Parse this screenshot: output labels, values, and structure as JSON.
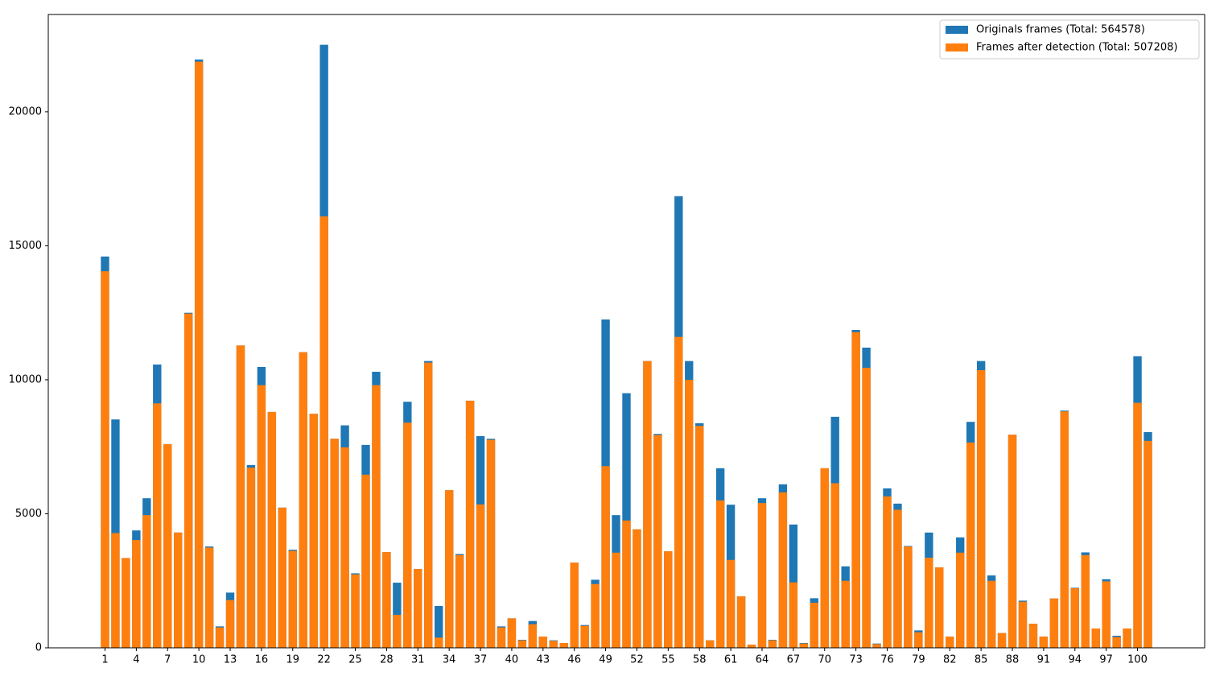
{
  "chart_data": {
    "type": "bar",
    "overlay": true,
    "x": [
      1,
      2,
      3,
      4,
      5,
      6,
      7,
      8,
      9,
      10,
      11,
      12,
      13,
      14,
      15,
      16,
      17,
      18,
      19,
      20,
      21,
      22,
      23,
      24,
      25,
      26,
      27,
      28,
      29,
      30,
      31,
      32,
      33,
      34,
      35,
      36,
      37,
      38,
      39,
      40,
      41,
      42,
      43,
      44,
      45,
      46,
      47,
      48,
      49,
      50,
      51,
      52,
      53,
      54,
      55,
      56,
      57,
      58,
      59,
      60,
      61,
      62,
      63,
      64,
      65,
      66,
      67,
      68,
      69,
      70,
      71,
      72,
      73,
      74,
      75,
      76,
      77,
      78,
      79,
      80,
      81,
      82,
      83,
      84,
      85,
      86,
      87,
      88,
      89,
      90,
      91,
      92,
      93,
      94,
      95,
      96,
      97,
      98,
      99,
      100,
      101
    ],
    "series": [
      {
        "name": "Originals frames (Total: 564578)",
        "color": "#1f77b4",
        "values": [
          14600,
          8520,
          3350,
          4380,
          5580,
          10570,
          7600,
          4300,
          12500,
          21950,
          3780,
          800,
          2060,
          11280,
          6820,
          10480,
          8800,
          5230,
          3660,
          11030,
          8730,
          22500,
          7800,
          8300,
          2780,
          7570,
          10300,
          3570,
          2430,
          9180,
          2940,
          10700,
          1560,
          5880,
          3500,
          9220,
          7900,
          7800,
          800,
          1100,
          300,
          1000,
          420,
          280,
          180,
          3180,
          850,
          2540,
          12250,
          4950,
          9500,
          4420,
          10700,
          7980,
          3600,
          16850,
          10700,
          8380,
          280,
          6700,
          5340,
          1920,
          120,
          5580,
          300,
          6100,
          4600,
          180,
          1850,
          6700,
          8620,
          3040,
          11860,
          11200,
          160,
          5950,
          5380,
          3800,
          650,
          4300,
          3000,
          420,
          4120,
          8430,
          10700,
          2700,
          550,
          7950,
          1760,
          900,
          420,
          1840,
          8850,
          2240,
          3560,
          720,
          2560,
          450,
          720,
          10880,
          8050
        ]
      },
      {
        "name": "Frames after detection (Total: 507208)",
        "color": "#ff7f0e",
        "values": [
          14050,
          4280,
          3350,
          4020,
          4950,
          9120,
          7600,
          4300,
          12470,
          21870,
          3740,
          760,
          1780,
          11280,
          6720,
          9800,
          8800,
          5230,
          3620,
          11030,
          8730,
          16100,
          7800,
          7480,
          2740,
          6460,
          9800,
          3570,
          1230,
          8400,
          2940,
          10640,
          380,
          5880,
          3460,
          9220,
          5350,
          7760,
          760,
          1100,
          280,
          880,
          420,
          260,
          180,
          3180,
          820,
          2380,
          6780,
          3550,
          4750,
          4420,
          10700,
          7940,
          3600,
          11600,
          10000,
          8280,
          280,
          5500,
          3280,
          1920,
          120,
          5400,
          280,
          5800,
          2440,
          160,
          1680,
          6700,
          6140,
          2500,
          11780,
          10450,
          140,
          5650,
          5150,
          3780,
          580,
          3360,
          3000,
          420,
          3550,
          7660,
          10360,
          2500,
          550,
          7950,
          1720,
          900,
          420,
          1840,
          8820,
          2220,
          3460,
          720,
          2480,
          400,
          720,
          9140,
          7720
        ]
      }
    ],
    "xlim": [
      -4.44,
      106.44
    ],
    "xticks": [
      1,
      4,
      7,
      10,
      13,
      16,
      19,
      22,
      25,
      28,
      31,
      34,
      37,
      40,
      43,
      46,
      49,
      52,
      55,
      58,
      61,
      64,
      67,
      70,
      73,
      76,
      79,
      82,
      85,
      88,
      91,
      94,
      97,
      100
    ],
    "ylim": [
      0,
      23630
    ],
    "yticks": [
      0,
      5000,
      10000,
      15000,
      20000
    ],
    "grid": false,
    "legend": "upper right"
  }
}
